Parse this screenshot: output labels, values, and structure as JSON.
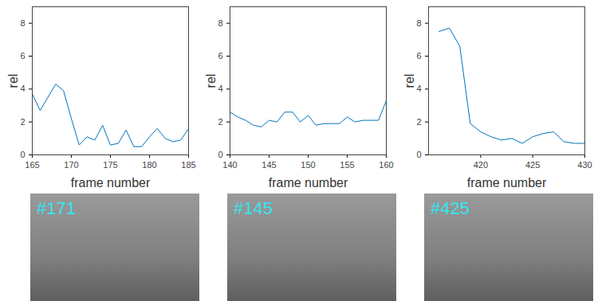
{
  "chart_data": [
    {
      "type": "line",
      "color": "#0072bd",
      "x_label": "frame number",
      "y_label": "rel",
      "x": [
        165,
        166,
        167,
        168,
        169,
        170,
        171,
        172,
        173,
        174,
        175,
        176,
        177,
        178,
        179,
        180,
        181,
        182,
        183,
        184,
        185
      ],
      "values": [
        3.7,
        2.7,
        3.5,
        4.3,
        3.9,
        2.2,
        0.6,
        1.1,
        0.9,
        1.8,
        0.6,
        0.7,
        1.5,
        0.5,
        0.5,
        1.1,
        1.6,
        1.0,
        0.8,
        0.9,
        1.6
      ],
      "xlim": [
        165,
        185
      ],
      "xticks": [
        165,
        170,
        175,
        180,
        185
      ],
      "ylim": [
        0,
        9
      ],
      "yticks": [
        0,
        2,
        4,
        6,
        8
      ],
      "annotations": [
        "#171"
      ]
    },
    {
      "type": "line",
      "color": "#0072bd",
      "x_label": "frame number",
      "y_label": "rel",
      "x": [
        140,
        141,
        142,
        143,
        144,
        145,
        146,
        147,
        148,
        149,
        150,
        151,
        152,
        153,
        154,
        155,
        156,
        157,
        158,
        159,
        160
      ],
      "values": [
        2.6,
        2.3,
        2.1,
        1.8,
        1.7,
        2.1,
        2.0,
        2.6,
        2.6,
        2.0,
        2.4,
        1.8,
        1.9,
        1.9,
        1.9,
        2.3,
        2.0,
        2.1,
        2.1,
        2.1,
        3.3
      ],
      "xlim": [
        140,
        160
      ],
      "xticks": [
        140,
        145,
        150,
        155,
        160
      ],
      "ylim": [
        0,
        9
      ],
      "yticks": [
        0,
        2,
        4,
        6,
        8
      ],
      "annotations": [
        "#145"
      ]
    },
    {
      "type": "line",
      "color": "#0072bd",
      "x_label": "frame number",
      "y_label": "rel",
      "x": [
        416,
        417,
        418,
        419,
        420,
        421,
        422,
        423,
        424,
        425,
        426,
        427,
        428,
        429,
        430
      ],
      "values": [
        7.5,
        7.7,
        6.6,
        1.9,
        1.4,
        1.1,
        0.9,
        1.0,
        0.7,
        1.1,
        1.3,
        1.4,
        0.8,
        0.7,
        0.7
      ],
      "xlim": [
        415,
        430
      ],
      "xticks": [
        420,
        425,
        430
      ],
      "ylim": [
        0,
        9
      ],
      "yticks": [
        0,
        2,
        4,
        6,
        8
      ],
      "annotations": [
        "#425"
      ]
    }
  ]
}
